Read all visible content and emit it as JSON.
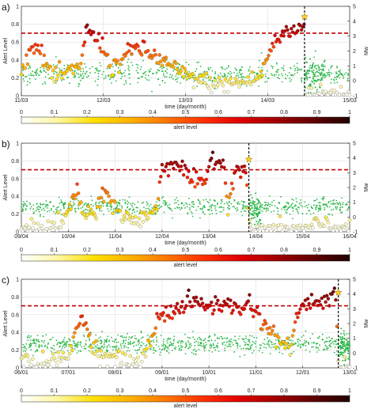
{
  "colorbar": {
    "label": "alert level",
    "ticks": [
      "0",
      "0.1",
      "0.2",
      "0.3",
      "0.4",
      "0.5",
      "0.6",
      "0.7",
      "0.8",
      "0.9",
      "1"
    ],
    "stops": [
      "#ffffff",
      "#fff7a0",
      "#ffe000",
      "#ffb000",
      "#ff7400",
      "#ff3000",
      "#e00000",
      "#a00000",
      "#600000",
      "#200000"
    ]
  },
  "chart_data": [
    {
      "type": "scatter",
      "panel_label": "a)",
      "xlabel": "time (day/month)",
      "ylabel": "Alert Level",
      "y2label": "Mw",
      "x_tick_labels": [
        "11/03",
        "12/03",
        "13/03",
        "14/03",
        "15/03"
      ],
      "x_range": [
        0,
        4
      ],
      "y_ticks": [
        "0",
        "0.2",
        "0.4",
        "0.6",
        "0.8",
        "1"
      ],
      "ylim": [
        0,
        1
      ],
      "y2_ticks": [
        "-1",
        "0",
        "1",
        "2",
        "3",
        "4",
        "5"
      ],
      "y2lim": [
        -1,
        5
      ],
      "threshold": 0.7,
      "mainshock_x": 3.45,
      "mainshock_mw": 4.3,
      "series": [
        {
          "name": "",
          "kind": "alert",
          "segments": [
            [
              0.0,
              0.28
            ],
            [
              0.15,
              0.6
            ],
            [
              0.4,
              0.2
            ],
            [
              0.7,
              0.3
            ],
            [
              0.8,
              0.75
            ],
            [
              1.0,
              0.55
            ],
            [
              1.1,
              0.3
            ],
            [
              1.4,
              0.55
            ],
            [
              1.7,
              0.4
            ],
            [
              2.0,
              0.22
            ],
            [
              2.4,
              0.12
            ],
            [
              2.7,
              0.15
            ],
            [
              2.9,
              0.2
            ],
            [
              3.05,
              0.55
            ],
            [
              3.2,
              0.7
            ],
            [
              3.3,
              0.72
            ],
            [
              3.38,
              0.76
            ],
            [
              3.45,
              0.78
            ],
            [
              3.46,
              0.05
            ],
            [
              3.55,
              0.02
            ],
            [
              3.6,
              0.02
            ]
          ]
        },
        {
          "name": "",
          "kind": "mw",
          "mean": 0.5,
          "spread": 0.8,
          "count": 620
        }
      ]
    },
    {
      "type": "scatter",
      "panel_label": "b)",
      "xlabel": "time (day/month)",
      "ylabel": "Alert Level",
      "y2label": "Mw",
      "x_tick_labels": [
        "09/04",
        "10/04",
        "11/04",
        "12/04",
        "13/04",
        "14/04",
        "15/04",
        "16/04"
      ],
      "x_range": [
        0,
        7
      ],
      "y_ticks": [
        "0",
        "0.2",
        "0.4",
        "0.6",
        "0.8",
        "1"
      ],
      "ylim": [
        0,
        1
      ],
      "y2_ticks": [
        "-1",
        "0",
        "1",
        "2",
        "3",
        "4",
        "5"
      ],
      "y2lim": [
        -1,
        5
      ],
      "threshold": 0.7,
      "mainshock_x": 4.85,
      "mainshock_mw": 3.9,
      "series": [
        {
          "name": "",
          "kind": "alert",
          "segments": [
            [
              0.0,
              0.05
            ],
            [
              0.4,
              0.02
            ],
            [
              0.9,
              0.1
            ],
            [
              1.2,
              0.5
            ],
            [
              1.3,
              0.2
            ],
            [
              1.6,
              0.2
            ],
            [
              1.8,
              0.45
            ],
            [
              2.1,
              0.2
            ],
            [
              2.5,
              0.1
            ],
            [
              2.9,
              0.3
            ],
            [
              3.0,
              0.72
            ],
            [
              3.3,
              0.8
            ],
            [
              3.6,
              0.6
            ],
            [
              3.9,
              0.5
            ],
            [
              4.05,
              0.85
            ],
            [
              4.3,
              0.78
            ],
            [
              4.4,
              0.3
            ],
            [
              4.55,
              0.72
            ],
            [
              4.8,
              0.7
            ],
            [
              4.85,
              0.02
            ],
            [
              5.5,
              0.03
            ],
            [
              6.0,
              0.02
            ],
            [
              6.5,
              0.1
            ],
            [
              6.6,
              0.05
            ]
          ]
        },
        {
          "name": "",
          "kind": "mw",
          "mean": 0.7,
          "spread": 0.6,
          "count": 640
        }
      ]
    },
    {
      "type": "scatter",
      "panel_label": "c)",
      "xlabel": "time (day/month)",
      "ylabel": "Alert Level",
      "y2label": "Mw",
      "x_tick_labels": [
        "06/01",
        "07/01",
        "08/01",
        "09/01",
        "10/01",
        "11/01",
        "12/01",
        "13/01"
      ],
      "x_range": [
        0,
        7.2
      ],
      "y_ticks": [
        "0",
        "0.2",
        "0.4",
        "0.6",
        "0.8",
        "1"
      ],
      "ylim": [
        0,
        1
      ],
      "y2_ticks": [
        "-1",
        "0",
        "1",
        "2",
        "3",
        "4",
        "5"
      ],
      "y2lim": [
        -1,
        5
      ],
      "threshold": 0.7,
      "mainshock_x": 6.95,
      "mainshock_mw": 4.1,
      "series": [
        {
          "name": "",
          "kind": "alert",
          "segments": [
            [
              0.0,
              0.08
            ],
            [
              0.5,
              0.05
            ],
            [
              1.0,
              0.1
            ],
            [
              1.2,
              0.4
            ],
            [
              1.35,
              0.65
            ],
            [
              1.5,
              0.3
            ],
            [
              1.8,
              0.12
            ],
            [
              2.2,
              0.08
            ],
            [
              2.6,
              0.05
            ],
            [
              2.85,
              0.3
            ],
            [
              3.0,
              0.6
            ],
            [
              3.4,
              0.65
            ],
            [
              3.7,
              0.75
            ],
            [
              4.1,
              0.7
            ],
            [
              4.5,
              0.72
            ],
            [
              4.8,
              0.65
            ],
            [
              5.0,
              0.75
            ],
            [
              5.3,
              0.5
            ],
            [
              5.6,
              0.35
            ],
            [
              5.9,
              0.2
            ],
            [
              6.1,
              0.7
            ],
            [
              6.5,
              0.75
            ],
            [
              6.9,
              0.8
            ],
            [
              6.95,
              0.05
            ],
            [
              7.0,
              0.0
            ]
          ]
        },
        {
          "name": "",
          "kind": "mw",
          "mean": 0.6,
          "spread": 0.7,
          "count": 760
        }
      ]
    }
  ]
}
